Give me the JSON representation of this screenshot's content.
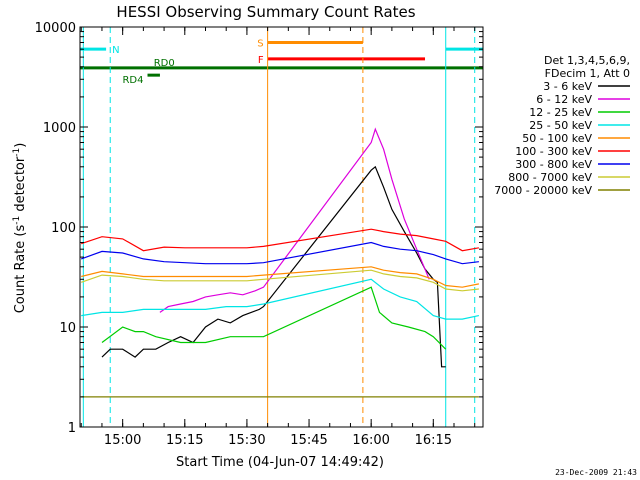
{
  "chart_data": {
    "type": "line",
    "title": "HESSI Observing Summary Count Rates",
    "xlabel": "Start Time (04-Jun-07 14:49:42)",
    "ylabel": "Count Rate (s",
    "ylabel_sup1": "-1",
    "ylabel_mid": " detector",
    "ylabel_sup2": "-1",
    "ylabel_end": ")",
    "y_scale": "log",
    "ylim": [
      1,
      10000
    ],
    "xlim": [
      "14:49:42",
      "16:27:00"
    ],
    "x_ticks": [
      "15:00",
      "15:15",
      "15:30",
      "15:45",
      "16:00",
      "16:15"
    ],
    "y_ticks": [
      "1",
      "10",
      "100",
      "1000",
      "10000"
    ],
    "grid": false,
    "legend_position": "right",
    "legend_header": [
      "Det 1,3,4,5,6,9,",
      "FDecim 1, Att 0"
    ],
    "footer_date": "23-Dec-2009 21:43",
    "colors": {
      "cyan": "#00e5e5",
      "orange": "#ff8c00",
      "dkgreen": "#007000"
    },
    "flags": [
      {
        "label": "N",
        "color": "#00e5e5",
        "segments": [
          [
            "14:49:42",
            "14:56:00"
          ],
          [
            "16:18:00",
            "16:27:00"
          ]
        ],
        "y": 6000
      },
      {
        "label": "S",
        "color": "#ff8c00",
        "segments": [
          [
            "15:35:00",
            "15:58:00"
          ]
        ],
        "y": 7000
      },
      {
        "label": "F",
        "color": "#ff0000",
        "segments": [
          [
            "15:35:00",
            "16:13:00"
          ]
        ],
        "y": 4800
      },
      {
        "label": "RD0",
        "color": "#007000",
        "segments": [
          [
            "14:49:42",
            "16:27:00"
          ]
        ],
        "y": 3900
      },
      {
        "label": "RD4",
        "color": "#007000",
        "segments": [
          [
            "15:06:00",
            "15:09:00"
          ]
        ],
        "y": 3300
      }
    ],
    "night_lines": [
      "14:50:30",
      "14:57:00",
      "15:35:00",
      "15:58:00",
      "16:18:00",
      "16:25:00"
    ],
    "series": [
      {
        "name": "3 - 6 keV",
        "color": "#000000",
        "x": [
          "14:55",
          "14:57",
          "15:00",
          "15:03",
          "15:05",
          "15:08",
          "15:11",
          "15:14",
          "15:17",
          "15:20",
          "15:23",
          "15:26",
          "15:29",
          "15:33",
          "15:34",
          "16:00",
          "16:01",
          "16:03",
          "16:05",
          "16:08",
          "16:11",
          "16:13",
          "16:15",
          "16:16",
          "16:17",
          "16:18"
        ],
        "y": [
          5,
          6,
          6,
          5,
          6,
          6,
          7,
          8,
          7,
          10,
          12,
          11,
          13,
          15,
          16,
          370,
          400,
          250,
          150,
          90,
          55,
          38,
          30,
          28,
          4,
          4
        ]
      },
      {
        "name": "6 - 12 keV",
        "color": "#dd00dd",
        "x": [
          "15:09",
          "15:11",
          "15:14",
          "15:17",
          "15:20",
          "15:23",
          "15:26",
          "15:29",
          "15:32",
          "15:34",
          "16:00",
          "16:01",
          "16:03",
          "16:05",
          "16:08",
          "16:11",
          "16:14"
        ],
        "y": [
          14,
          16,
          17,
          18,
          20,
          21,
          22,
          21,
          23,
          25,
          700,
          950,
          600,
          300,
          120,
          60,
          30
        ]
      },
      {
        "name": "12 - 25 keV",
        "color": "#00cc00",
        "x": [
          "14:55",
          "15:00",
          "15:03",
          "15:05",
          "15:08",
          "15:14",
          "15:20",
          "15:26",
          "15:30",
          "15:34",
          "16:00",
          "16:02",
          "16:05",
          "16:09",
          "16:13",
          "16:15",
          "16:18"
        ],
        "y": [
          7,
          10,
          9,
          9,
          8,
          7,
          7,
          8,
          8,
          8,
          25,
          14,
          11,
          10,
          9,
          8,
          6
        ]
      },
      {
        "name": "25 - 50 keV",
        "color": "#00e5e5",
        "x": [
          "14:50",
          "14:55",
          "15:00",
          "15:05",
          "15:10",
          "15:15",
          "15:20",
          "15:25",
          "15:30",
          "15:34",
          "16:00",
          "16:03",
          "16:07",
          "16:11",
          "16:15",
          "16:18",
          "16:22",
          "16:26"
        ],
        "y": [
          13,
          14,
          14,
          15,
          15,
          15,
          15,
          16,
          16,
          17,
          30,
          24,
          20,
          18,
          13,
          12,
          12,
          13
        ]
      },
      {
        "name": "50 - 100 keV",
        "color": "#ff8c00",
        "x": [
          "14:50",
          "14:55",
          "15:00",
          "15:05",
          "15:10",
          "15:15",
          "15:20",
          "15:25",
          "15:30",
          "15:34",
          "16:00",
          "16:03",
          "16:07",
          "16:11",
          "16:15",
          "16:18",
          "16:22",
          "16:26"
        ],
        "y": [
          32,
          36,
          34,
          32,
          32,
          32,
          32,
          32,
          32,
          33,
          40,
          37,
          35,
          34,
          30,
          26,
          25,
          27
        ]
      },
      {
        "name": "100 - 300 keV",
        "color": "#ff0000",
        "x": [
          "14:50",
          "14:55",
          "15:00",
          "15:05",
          "15:10",
          "15:15",
          "15:20",
          "15:25",
          "15:30",
          "15:34",
          "16:00",
          "16:03",
          "16:07",
          "16:11",
          "16:15",
          "16:18",
          "16:22",
          "16:26"
        ],
        "y": [
          68,
          80,
          76,
          58,
          63,
          62,
          62,
          62,
          62,
          64,
          95,
          90,
          85,
          82,
          76,
          72,
          58,
          62
        ]
      },
      {
        "name": "300 - 800 keV",
        "color": "#0000ee",
        "x": [
          "14:50",
          "14:55",
          "15:00",
          "15:05",
          "15:10",
          "15:15",
          "15:20",
          "15:25",
          "15:30",
          "15:34",
          "16:00",
          "16:03",
          "16:07",
          "16:11",
          "16:15",
          "16:18",
          "16:22",
          "16:26"
        ],
        "y": [
          48,
          57,
          55,
          48,
          45,
          44,
          43,
          43,
          43,
          44,
          70,
          64,
          60,
          58,
          53,
          48,
          43,
          45
        ]
      },
      {
        "name": "800 - 7000 keV",
        "color": "#cccc33",
        "x": [
          "14:50",
          "14:55",
          "15:00",
          "15:05",
          "15:10",
          "15:15",
          "15:20",
          "15:25",
          "15:30",
          "15:34",
          "16:00",
          "16:03",
          "16:07",
          "16:11",
          "16:15",
          "16:18",
          "16:22",
          "16:26"
        ],
        "y": [
          28,
          33,
          32,
          30,
          29,
          29,
          29,
          29,
          29,
          30,
          37,
          34,
          32,
          31,
          28,
          24,
          23,
          24
        ]
      },
      {
        "name": "7000 - 20000 keV",
        "color": "#808000",
        "x": [
          "14:50",
          "14:53",
          "14:56",
          "15:00",
          "15:05",
          "15:10",
          "15:15",
          "15:20",
          "15:25",
          "15:30",
          "15:34",
          "16:00",
          "16:05",
          "16:10",
          "16:15",
          "16:20",
          "16:26"
        ],
        "y": [
          2,
          2,
          2,
          2,
          2,
          2,
          2,
          2,
          2,
          2,
          2,
          2,
          2,
          2,
          2,
          2,
          2
        ]
      }
    ]
  }
}
